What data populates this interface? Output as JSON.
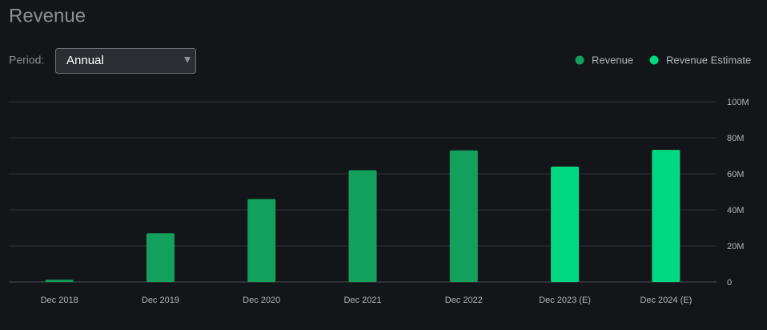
{
  "header": {
    "title": "Revenue",
    "period_label": "Period:",
    "period_value": "Annual"
  },
  "chart_data": {
    "type": "bar",
    "categories": [
      "Dec 2018",
      "Dec 2019",
      "Dec 2020",
      "Dec 2021",
      "Dec 2022",
      "Dec 2023 (E)",
      "Dec 2024 (E)"
    ],
    "series": [
      {
        "name": "Revenue",
        "color": "#12a05c",
        "values": [
          1200000,
          27000000,
          46000000,
          62000000,
          73000000,
          null,
          null
        ]
      },
      {
        "name": "Revenue Estimate",
        "color": "#00d882",
        "values": [
          null,
          null,
          null,
          null,
          null,
          64000000,
          73300000
        ]
      }
    ],
    "ylim": [
      0,
      100000000
    ],
    "yticks": [
      0,
      {
        "value": 20000000,
        "label": "20M"
      },
      {
        "value": 40000000,
        "label": "40M"
      },
      {
        "value": 60000000,
        "label": "60M"
      },
      {
        "value": 80000000,
        "label": "80M"
      },
      {
        "value": 100000000,
        "label": "100M"
      }
    ],
    "grid": true,
    "legend": "top-right"
  }
}
